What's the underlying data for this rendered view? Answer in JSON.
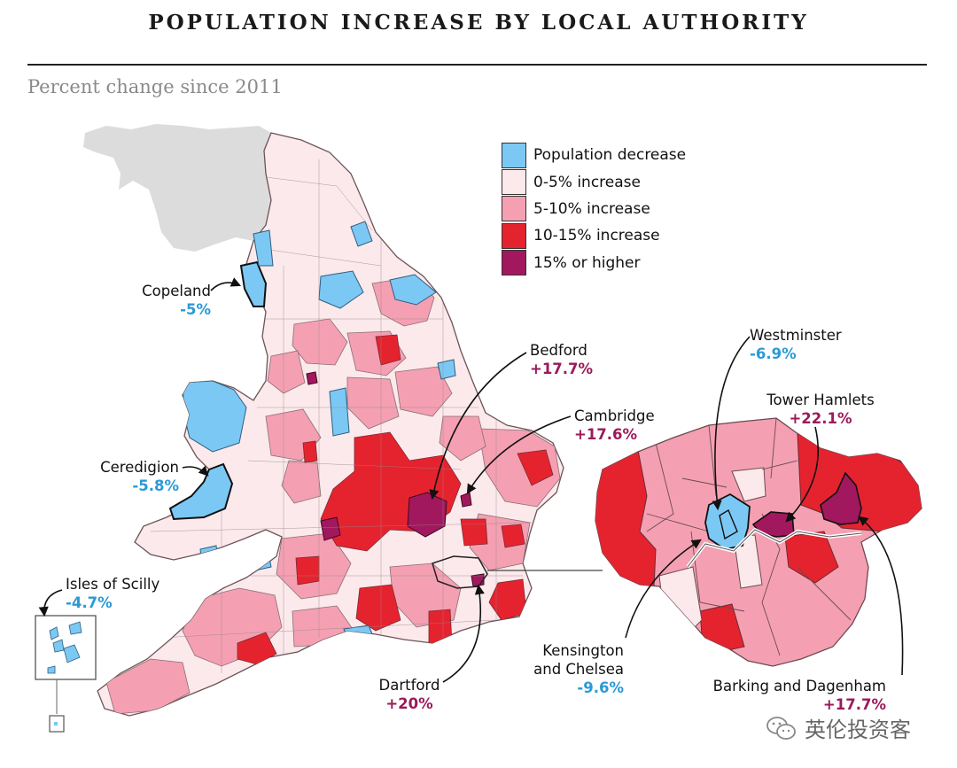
{
  "header": {
    "title": "POPULATION INCREASE BY LOCAL AUTHORITY",
    "subtitle": "Percent change since 2011"
  },
  "colors": {
    "decrease": "#7cc8f4",
    "increase_0_5": "#fbe9ec",
    "increase_5_10": "#f4a0b2",
    "increase_10_15": "#e5232f",
    "increase_15_plus": "#a2185e",
    "scotland_grey": "#dcdcdc",
    "boundary": "#8a6d72"
  },
  "legend": {
    "items": [
      {
        "label": "Population decrease",
        "color": "#7cc8f4"
      },
      {
        "label": "0-5% increase",
        "color": "#fbe9ec"
      },
      {
        "label": "5-10% increase",
        "color": "#f4a0b2"
      },
      {
        "label": "10-15% increase",
        "color": "#e5232f"
      },
      {
        "label": "15% or higher",
        "color": "#a2185e"
      }
    ]
  },
  "annotations": {
    "copeland": {
      "name": "Copeland",
      "value": "-5%",
      "color": "#2a9ad6"
    },
    "ceredigion": {
      "name": "Ceredigion",
      "value": "-5.8%",
      "color": "#2a9ad6"
    },
    "scilly": {
      "name": "Isles of Scilly",
      "value": "-4.7%",
      "color": "#2a9ad6"
    },
    "bedford": {
      "name": "Bedford",
      "value": "+17.7%",
      "color": "#9b1a5a"
    },
    "cambridge": {
      "name": "Cambridge",
      "value": "+17.6%",
      "color": "#9b1a5a"
    },
    "dartford": {
      "name": "Dartford",
      "value": "+20%",
      "color": "#9b1a5a"
    },
    "westminster": {
      "name": "Westminster",
      "value": "-6.9%",
      "color": "#2a9ad6"
    },
    "tower_hamlets": {
      "name": "Tower Hamlets",
      "value": "+22.1%",
      "color": "#9b1a5a"
    },
    "kensington_line1": "Kensington",
    "kensington_line2": "and Chelsea",
    "kensington_value": "-9.6%",
    "barking": {
      "name": "Barking and Dagenham",
      "value": "+17.7%",
      "color": "#9b1a5a"
    }
  },
  "watermark": {
    "text": "英伦投资客"
  }
}
